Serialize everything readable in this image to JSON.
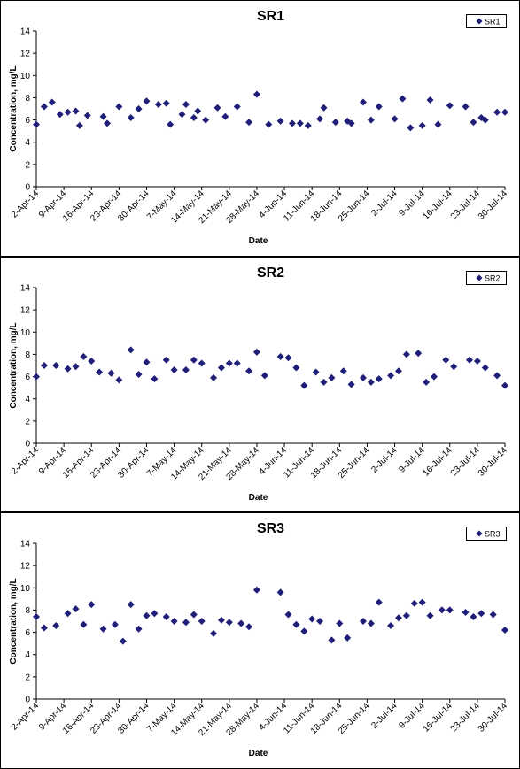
{
  "chart_data": [
    {
      "type": "scatter",
      "title": "SR1",
      "xlabel": "Date",
      "ylabel": "Concentration, mg/L",
      "ylim": [
        0,
        14
      ],
      "yticks": [
        0,
        2,
        4,
        6,
        8,
        10,
        12,
        14
      ],
      "xlim": [
        "2014-04-02",
        "2014-07-30"
      ],
      "xtick_labels": [
        "2-Apr-14",
        "9-Apr-14",
        "16-Apr-14",
        "23-Apr-14",
        "30-Apr-14",
        "7-May-14",
        "14-May-14",
        "21-May-14",
        "28-May-14",
        "4-Jun-14",
        "11-Jun-14",
        "18-Jun-14",
        "25-Jun-14",
        "2-Jul-14",
        "9-Jul-14",
        "16-Jul-14",
        "23-Jul-14",
        "30-Jul-14"
      ],
      "grid": false,
      "legend": "top-right",
      "series": [
        {
          "name": "SR1",
          "color": "#1f1f7a",
          "x": [
            "2014-04-02",
            "2014-04-04",
            "2014-04-06",
            "2014-04-08",
            "2014-04-10",
            "2014-04-12",
            "2014-04-13",
            "2014-04-15",
            "2014-04-19",
            "2014-04-20",
            "2014-04-23",
            "2014-04-26",
            "2014-04-28",
            "2014-04-30",
            "2014-05-03",
            "2014-05-05",
            "2014-05-06",
            "2014-05-09",
            "2014-05-10",
            "2014-05-12",
            "2014-05-13",
            "2014-05-15",
            "2014-05-18",
            "2014-05-20",
            "2014-05-23",
            "2014-05-26",
            "2014-05-28",
            "2014-05-31",
            "2014-06-03",
            "2014-06-06",
            "2014-06-08",
            "2014-06-10",
            "2014-06-13",
            "2014-06-14",
            "2014-06-17",
            "2014-06-20",
            "2014-06-21",
            "2014-06-24",
            "2014-06-26",
            "2014-06-28",
            "2014-07-02",
            "2014-07-04",
            "2014-07-06",
            "2014-07-09",
            "2014-07-11",
            "2014-07-13",
            "2014-07-16",
            "2014-07-20",
            "2014-07-22",
            "2014-07-24",
            "2014-07-25",
            "2014-07-28",
            "2014-07-30"
          ],
          "y": [
            5.6,
            7.2,
            7.6,
            6.5,
            6.7,
            6.8,
            5.5,
            6.4,
            6.3,
            5.7,
            7.2,
            6.2,
            7.0,
            7.7,
            7.4,
            7.5,
            5.6,
            6.5,
            7.4,
            6.2,
            6.8,
            6.0,
            7.1,
            6.3,
            7.2,
            5.8,
            8.3,
            5.6,
            5.9,
            5.7,
            5.7,
            5.5,
            6.1,
            7.1,
            5.8,
            5.9,
            5.7,
            7.6,
            6.0,
            7.2,
            6.1,
            7.9,
            5.3,
            5.5,
            7.8,
            5.6,
            7.3,
            7.2,
            5.8,
            6.2,
            6.0,
            6.7,
            6.7
          ]
        }
      ]
    },
    {
      "type": "scatter",
      "title": "SR2",
      "xlabel": "Date",
      "ylabel": "Concentration, mg/L",
      "ylim": [
        0,
        14
      ],
      "yticks": [
        0,
        2,
        4,
        6,
        8,
        10,
        12,
        14
      ],
      "xlim": [
        "2014-04-02",
        "2014-07-30"
      ],
      "xtick_labels": [
        "2-Apr-14",
        "9-Apr-14",
        "16-Apr-14",
        "23-Apr-14",
        "30-Apr-14",
        "7-May-14",
        "14-May-14",
        "21-May-14",
        "28-May-14",
        "4-Jun-14",
        "11-Jun-14",
        "18-Jun-14",
        "25-Jun-14",
        "2-Jul-14",
        "9-Jul-14",
        "16-Jul-14",
        "23-Jul-14",
        "30-Jul-14"
      ],
      "grid": false,
      "legend": "top-right",
      "series": [
        {
          "name": "SR2",
          "color": "#1f1f7a",
          "x": [
            "2014-04-02",
            "2014-04-04",
            "2014-04-07",
            "2014-04-10",
            "2014-04-12",
            "2014-04-14",
            "2014-04-16",
            "2014-04-18",
            "2014-04-21",
            "2014-04-23",
            "2014-04-26",
            "2014-04-28",
            "2014-04-30",
            "2014-05-02",
            "2014-05-05",
            "2014-05-07",
            "2014-05-10",
            "2014-05-12",
            "2014-05-14",
            "2014-05-17",
            "2014-05-19",
            "2014-05-21",
            "2014-05-23",
            "2014-05-26",
            "2014-05-28",
            "2014-05-30",
            "2014-06-03",
            "2014-06-05",
            "2014-06-07",
            "2014-06-09",
            "2014-06-12",
            "2014-06-14",
            "2014-06-16",
            "2014-06-19",
            "2014-06-21",
            "2014-06-24",
            "2014-06-26",
            "2014-06-28",
            "2014-07-01",
            "2014-07-03",
            "2014-07-05",
            "2014-07-08",
            "2014-07-10",
            "2014-07-12",
            "2014-07-15",
            "2014-07-17",
            "2014-07-21",
            "2014-07-23",
            "2014-07-25",
            "2014-07-28",
            "2014-07-30"
          ],
          "y": [
            6.0,
            7.0,
            7.0,
            6.7,
            6.9,
            7.8,
            7.4,
            6.4,
            6.3,
            5.7,
            8.4,
            6.2,
            7.3,
            5.8,
            7.5,
            6.6,
            6.6,
            7.5,
            7.2,
            5.9,
            6.8,
            7.2,
            7.2,
            6.5,
            8.2,
            6.1,
            7.8,
            7.7,
            6.8,
            5.2,
            6.4,
            5.5,
            5.9,
            6.5,
            5.3,
            5.9,
            5.5,
            5.8,
            6.1,
            6.5,
            8.0,
            8.1,
            5.5,
            6.0,
            7.5,
            6.9,
            7.5,
            7.4,
            6.8,
            6.1,
            5.2
          ]
        }
      ]
    },
    {
      "type": "scatter",
      "title": "SR3",
      "xlabel": "Date",
      "ylabel": "Concentration, mg/L",
      "ylim": [
        0,
        14
      ],
      "yticks": [
        0,
        2,
        4,
        6,
        8,
        10,
        12,
        14
      ],
      "xlim": [
        "2014-04-02",
        "2014-07-30"
      ],
      "xtick_labels": [
        "2-Apr-14",
        "9-Apr-14",
        "16-Apr-14",
        "23-Apr-14",
        "30-Apr-14",
        "7-May-14",
        "14-May-14",
        "21-May-14",
        "28-May-14",
        "4-Jun-14",
        "11-Jun-14",
        "18-Jun-14",
        "25-Jun-14",
        "2-Jul-14",
        "9-Jul-14",
        "16-Jul-14",
        "23-Jul-14",
        "30-Jul-14"
      ],
      "grid": false,
      "legend": "top-right",
      "series": [
        {
          "name": "SR3",
          "color": "#1f1f7a",
          "x": [
            "2014-04-02",
            "2014-04-04",
            "2014-04-07",
            "2014-04-10",
            "2014-04-12",
            "2014-04-14",
            "2014-04-16",
            "2014-04-19",
            "2014-04-22",
            "2014-04-24",
            "2014-04-26",
            "2014-04-28",
            "2014-04-30",
            "2014-05-02",
            "2014-05-05",
            "2014-05-07",
            "2014-05-10",
            "2014-05-12",
            "2014-05-14",
            "2014-05-17",
            "2014-05-19",
            "2014-05-21",
            "2014-05-24",
            "2014-05-26",
            "2014-05-28",
            "2014-06-03",
            "2014-06-05",
            "2014-06-07",
            "2014-06-09",
            "2014-06-11",
            "2014-06-13",
            "2014-06-16",
            "2014-06-18",
            "2014-06-20",
            "2014-06-24",
            "2014-06-26",
            "2014-06-28",
            "2014-07-01",
            "2014-07-03",
            "2014-07-05",
            "2014-07-07",
            "2014-07-09",
            "2014-07-11",
            "2014-07-14",
            "2014-07-16",
            "2014-07-20",
            "2014-07-22",
            "2014-07-24",
            "2014-07-27",
            "2014-07-30"
          ],
          "y": [
            7.4,
            6.4,
            6.6,
            7.7,
            8.1,
            6.7,
            8.5,
            6.3,
            6.7,
            5.2,
            8.5,
            6.3,
            7.5,
            7.7,
            7.4,
            7.0,
            6.9,
            7.6,
            7.0,
            5.9,
            7.1,
            6.9,
            6.8,
            6.5,
            9.8,
            9.6,
            7.6,
            6.7,
            6.1,
            7.2,
            7.0,
            5.3,
            6.8,
            5.5,
            7.0,
            6.8,
            8.7,
            6.6,
            7.3,
            7.5,
            8.6,
            8.7,
            7.5,
            8.0,
            8.0,
            7.8,
            7.4,
            7.7,
            7.6,
            6.2
          ]
        }
      ]
    }
  ]
}
